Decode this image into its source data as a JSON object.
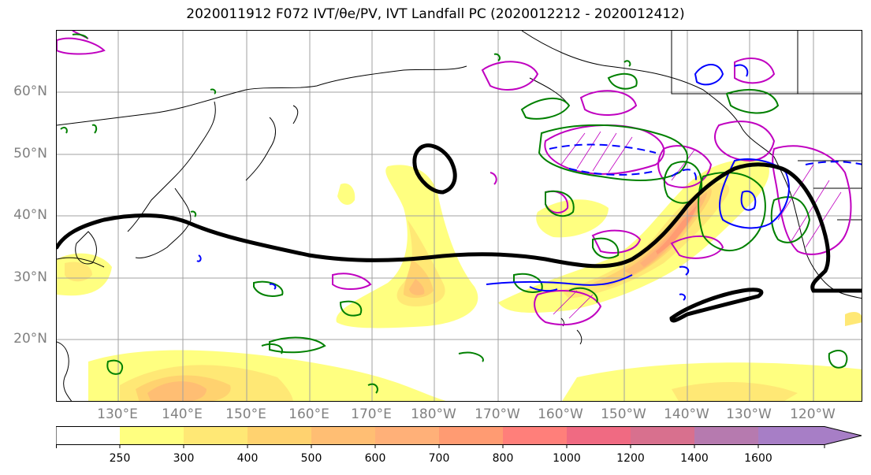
{
  "title": "2020011912 F072 IVT/θe/PV, IVT Landfall PC (2020012212 - 2020012412)",
  "lat_labels": [
    "60°N",
    "50°N",
    "40°N",
    "30°N",
    "20°N"
  ],
  "lon_labels": [
    "130°E",
    "140°E",
    "150°E",
    "160°E",
    "170°E",
    "180°W",
    "170°W",
    "160°W",
    "150°W",
    "140°W",
    "130°W",
    "120°W"
  ],
  "colorbar": {
    "ticks": [
      "250",
      "300",
      "400",
      "500",
      "600",
      "700",
      "800",
      "1000",
      "1200",
      "1400",
      "1600"
    ],
    "colors": [
      "#ffff80",
      "#ffe875",
      "#ffd26f",
      "#ffbe73",
      "#ffb078",
      "#ff9b72",
      "#ff7f7a",
      "#f06a82",
      "#d8708e",
      "#b67aaf",
      "#a77ec6"
    ]
  },
  "colors": {
    "ivt_contour": "#000000",
    "theta_e": "#008000",
    "pv_positive": "#0000ff",
    "pc": "#c000c0",
    "grid": "#a0a0a0",
    "axis_label": "#808080"
  }
}
